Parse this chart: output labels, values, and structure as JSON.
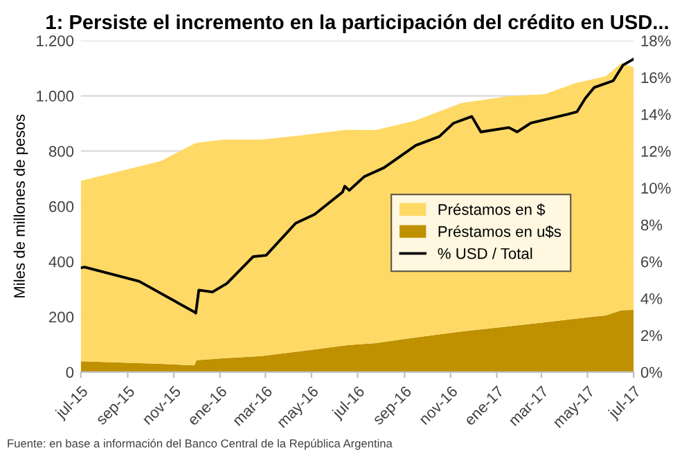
{
  "chart_data": {
    "type": "area",
    "stacked": true,
    "title": "1: Persiste el incremento en la participación del crédito en USD...",
    "ylabel": "Miles de millones de pesos",
    "x": [
      "2015-07-01",
      "2015-10-15",
      "2015-11-28",
      "2015-12-01",
      "2016-01-05",
      "2016-02-25",
      "2016-04-15",
      "2016-06-15",
      "2016-07-25",
      "2016-09-15",
      "2016-11-15",
      "2017-01-15",
      "2017-03-05",
      "2017-04-15",
      "2017-05-25",
      "2017-06-15",
      "2017-07-01"
    ],
    "series": [
      {
        "name": "Préstamos en u$s",
        "color": "#bf9000",
        "values": [
          39,
          30,
          24,
          43,
          50,
          58,
          75,
          97,
          105,
          125,
          147,
          165,
          180,
          193,
          205,
          224,
          225
        ]
      },
      {
        "name": "Préstamos en $",
        "color": "#ffd966",
        "values": [
          653,
          734,
          803,
          787,
          792,
          784,
          781,
          780,
          771,
          785,
          827,
          833,
          826,
          853,
          866,
          895,
          878
        ]
      },
      {
        "name": "% USD / Total",
        "type": "line",
        "axis": "y2",
        "color": "#000000",
        "x": [
          "2015-07-01",
          "2015-07-06",
          "2015-09-16",
          "2015-11-29",
          "2015-11-30",
          "2015-12-04",
          "2015-12-22",
          "2016-01-10",
          "2016-02-14",
          "2016-03-02",
          "2016-04-10",
          "2016-05-05",
          "2016-06-11",
          "2016-06-14",
          "2016-06-20",
          "2016-07-10",
          "2016-08-05",
          "2016-09-16",
          "2016-10-17",
          "2016-11-05",
          "2016-11-29",
          "2016-12-11",
          "2017-01-17",
          "2017-01-28",
          "2017-02-15",
          "2017-03-11",
          "2017-04-05",
          "2017-04-17",
          "2017-04-28",
          "2017-05-10",
          "2017-06-04",
          "2017-06-17",
          "2017-07-01"
        ],
        "values": [
          5.66,
          5.7,
          4.93,
          3.24,
          3.2,
          4.45,
          4.35,
          4.81,
          6.27,
          6.34,
          8.08,
          8.56,
          9.77,
          10.09,
          9.87,
          10.62,
          11.1,
          12.31,
          12.79,
          13.52,
          13.88,
          13.04,
          13.28,
          13.04,
          13.52,
          13.76,
          14.0,
          14.13,
          14.86,
          15.46,
          15.82,
          16.67,
          17.0
        ]
      }
    ],
    "xlim": [
      "2015-07-01",
      "2017-07-01"
    ],
    "xticks": [
      {
        "value": "2015-07-01",
        "label": "jul-15"
      },
      {
        "value": "2015-09-01",
        "label": "sep-15"
      },
      {
        "value": "2015-11-01",
        "label": "nov-15"
      },
      {
        "value": "2016-01-01",
        "label": "ene-16"
      },
      {
        "value": "2016-03-01",
        "label": "mar-16"
      },
      {
        "value": "2016-05-01",
        "label": "may-16"
      },
      {
        "value": "2016-07-01",
        "label": "jul-16"
      },
      {
        "value": "2016-09-01",
        "label": "sep-16"
      },
      {
        "value": "2016-11-01",
        "label": "nov-16"
      },
      {
        "value": "2017-01-01",
        "label": "ene-17"
      },
      {
        "value": "2017-03-01",
        "label": "mar-17"
      },
      {
        "value": "2017-05-01",
        "label": "may-17"
      },
      {
        "value": "2017-07-01",
        "label": "jul-17"
      }
    ],
    "ylim": [
      0,
      1200
    ],
    "yticks": [
      0,
      200,
      400,
      600,
      800,
      {
        "value": 1000,
        "label": "1.000"
      },
      {
        "value": 1200,
        "label": "1.200"
      }
    ],
    "y2lim": [
      0,
      18
    ],
    "y2ticks": [
      {
        "value": 0,
        "label": "0%"
      },
      {
        "value": 2,
        "label": "2%"
      },
      {
        "value": 4,
        "label": "4%"
      },
      {
        "value": 6,
        "label": "6%"
      },
      {
        "value": 8,
        "label": "8%"
      },
      {
        "value": 10,
        "label": "10%"
      },
      {
        "value": 12,
        "label": "12%"
      },
      {
        "value": 14,
        "label": "14%"
      },
      {
        "value": 16,
        "label": "16%"
      },
      {
        "value": 18,
        "label": "18%"
      }
    ],
    "grid": "y",
    "legend": "center right",
    "annotations": [
      "Fuente: en base a información del Banco Central de la República Argentina"
    ]
  }
}
